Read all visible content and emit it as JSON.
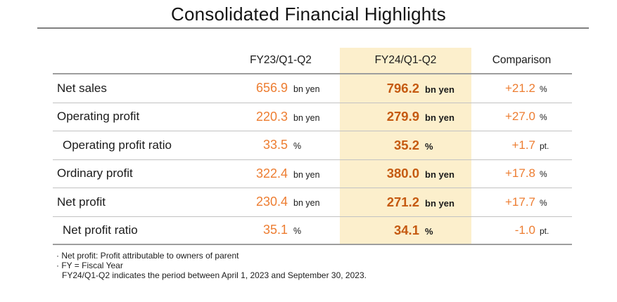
{
  "title": "Consolidated Financial Highlights",
  "colors": {
    "value_orange": "#ED7D31",
    "value_orange_dark": "#C55A11",
    "highlight_background": "#FCEFCC",
    "rule_gray": "#808080"
  },
  "table": {
    "headers": {
      "fy23": "FY23/Q1-Q2",
      "fy24": "FY24/Q1-Q2",
      "comparison": "Comparison"
    },
    "rows": [
      {
        "label": "Net sales",
        "fy23": "656.9",
        "fy23_unit": "bn yen",
        "fy24": "796.2",
        "fy24_unit": "bn yen",
        "comp": "+21.2",
        "comp_unit": "%"
      },
      {
        "label": "Operating profit",
        "fy23": "220.3",
        "fy23_unit": "bn yen",
        "fy24": "279.9",
        "fy24_unit": "bn yen",
        "comp": "+27.0",
        "comp_unit": "%"
      },
      {
        "label": "Operating profit ratio",
        "fy23": "33.5",
        "fy23_unit": "%",
        "fy24": "35.2",
        "fy24_unit": "%",
        "comp": "+1.7",
        "comp_unit": "pt."
      },
      {
        "label": "Ordinary profit",
        "fy23": "322.4",
        "fy23_unit": "bn yen",
        "fy24": "380.0",
        "fy24_unit": "bn yen",
        "comp": "+17.8",
        "comp_unit": "%"
      },
      {
        "label": "Net profit",
        "fy23": "230.4",
        "fy23_unit": "bn yen",
        "fy24": "271.2",
        "fy24_unit": "bn yen",
        "comp": "+17.7",
        "comp_unit": "%"
      },
      {
        "label": "Net profit ratio",
        "fy23": "35.1",
        "fy23_unit": "%",
        "fy24": "34.1",
        "fy24_unit": "%",
        "comp": "-1.0",
        "comp_unit": "pt."
      }
    ]
  },
  "footnotes": [
    "· Net profit: Profit attributable to owners of parent",
    "· FY = Fiscal Year",
    "FY24/Q1-Q2 indicates the period between April 1, 2023 and September 30, 2023."
  ]
}
